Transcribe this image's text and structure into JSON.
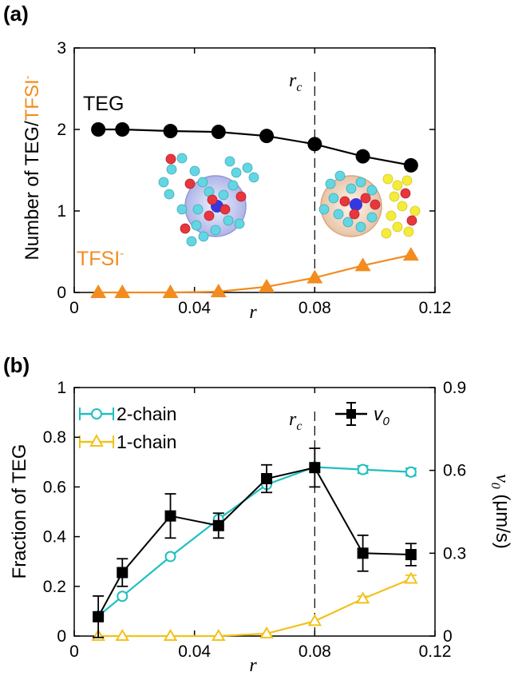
{
  "colors": {
    "teg": "#000000",
    "tfsi": "#f28c1e",
    "two_chain": "#1fbfbf",
    "one_chain": "#f2c21b",
    "v0": "#000000"
  },
  "chart_data": [
    {
      "panel_label": "(a)",
      "type": "line",
      "xlabel": "r",
      "ylabel_prefix": "Number of TEG/",
      "ylabel_tfsi": "TFSI",
      "ylabel_sup": "-",
      "xlim": [
        0,
        0.12
      ],
      "ylim": [
        0,
        3
      ],
      "xticks": [
        "0",
        "0.04",
        "0.08",
        "0.12"
      ],
      "yticks": [
        "0",
        "1",
        "2",
        "3"
      ],
      "rc_label": "r",
      "rc_sub": "c",
      "rc_x": 0.08,
      "series": [
        {
          "name": "TEG",
          "marker": "circle",
          "x": [
            0.008,
            0.016,
            0.032,
            0.048,
            0.064,
            0.08,
            0.096,
            0.112
          ],
          "y": [
            2.0,
            2.0,
            1.98,
            1.97,
            1.92,
            1.82,
            1.67,
            1.56
          ]
        },
        {
          "name": "TFSI",
          "name_sup": "-",
          "marker": "triangle",
          "x": [
            0.008,
            0.016,
            0.032,
            0.048,
            0.064,
            0.08,
            0.096,
            0.112
          ],
          "y": [
            0.0,
            0.0,
            0.0,
            0.01,
            0.07,
            0.18,
            0.33,
            0.46
          ]
        }
      ]
    },
    {
      "panel_label": "(b)",
      "type": "line",
      "xlabel": "r",
      "ylabel": "Fraction of TEG",
      "ylabel_right": "v",
      "ylabel_right_sub": "0",
      "ylabel_right_unit": " (μm/s)",
      "xlim": [
        0,
        0.12
      ],
      "ylim": [
        0,
        1
      ],
      "ylim_right": [
        0,
        0.9
      ],
      "xticks": [
        "0",
        "0.04",
        "0.08",
        "0.12"
      ],
      "yticks": [
        "0",
        "0.2",
        "0.4",
        "0.6",
        "0.8",
        "1"
      ],
      "yticks_right": [
        "0",
        "0.3",
        "0.6",
        "0.9"
      ],
      "rc_label": "r",
      "rc_sub": "c",
      "rc_x": 0.08,
      "legend": [
        "2-chain",
        "1-chain"
      ],
      "series": [
        {
          "name": "2-chain",
          "axis": "left",
          "marker": "open-circle",
          "x": [
            0.008,
            0.016,
            0.032,
            0.048,
            0.064,
            0.08,
            0.096,
            0.112
          ],
          "y": [
            0.08,
            0.16,
            0.32,
            0.47,
            0.61,
            0.68,
            0.67,
            0.66
          ],
          "err": [
            0.0,
            0.0,
            0.0,
            0.0,
            0.0,
            0.0,
            0.015,
            0.015
          ]
        },
        {
          "name": "1-chain",
          "axis": "left",
          "marker": "open-triangle",
          "x": [
            0.008,
            0.016,
            0.032,
            0.048,
            0.064,
            0.08,
            0.096,
            0.112
          ],
          "y": [
            0.0,
            0.0,
            0.0,
            0.0,
            0.01,
            0.06,
            0.15,
            0.23
          ],
          "err": [
            0.0,
            0.0,
            0.0,
            0.0,
            0.0,
            0.0,
            0.01,
            0.015
          ]
        },
        {
          "name": "v0",
          "axis": "right",
          "marker": "square",
          "x": [
            0.008,
            0.016,
            0.032,
            0.048,
            0.064,
            0.08,
            0.096,
            0.112
          ],
          "y": [
            0.07,
            0.23,
            0.435,
            0.4,
            0.57,
            0.61,
            0.3,
            0.295
          ],
          "err": [
            0.075,
            0.05,
            0.08,
            0.045,
            0.05,
            0.07,
            0.065,
            0.04
          ]
        }
      ]
    }
  ]
}
